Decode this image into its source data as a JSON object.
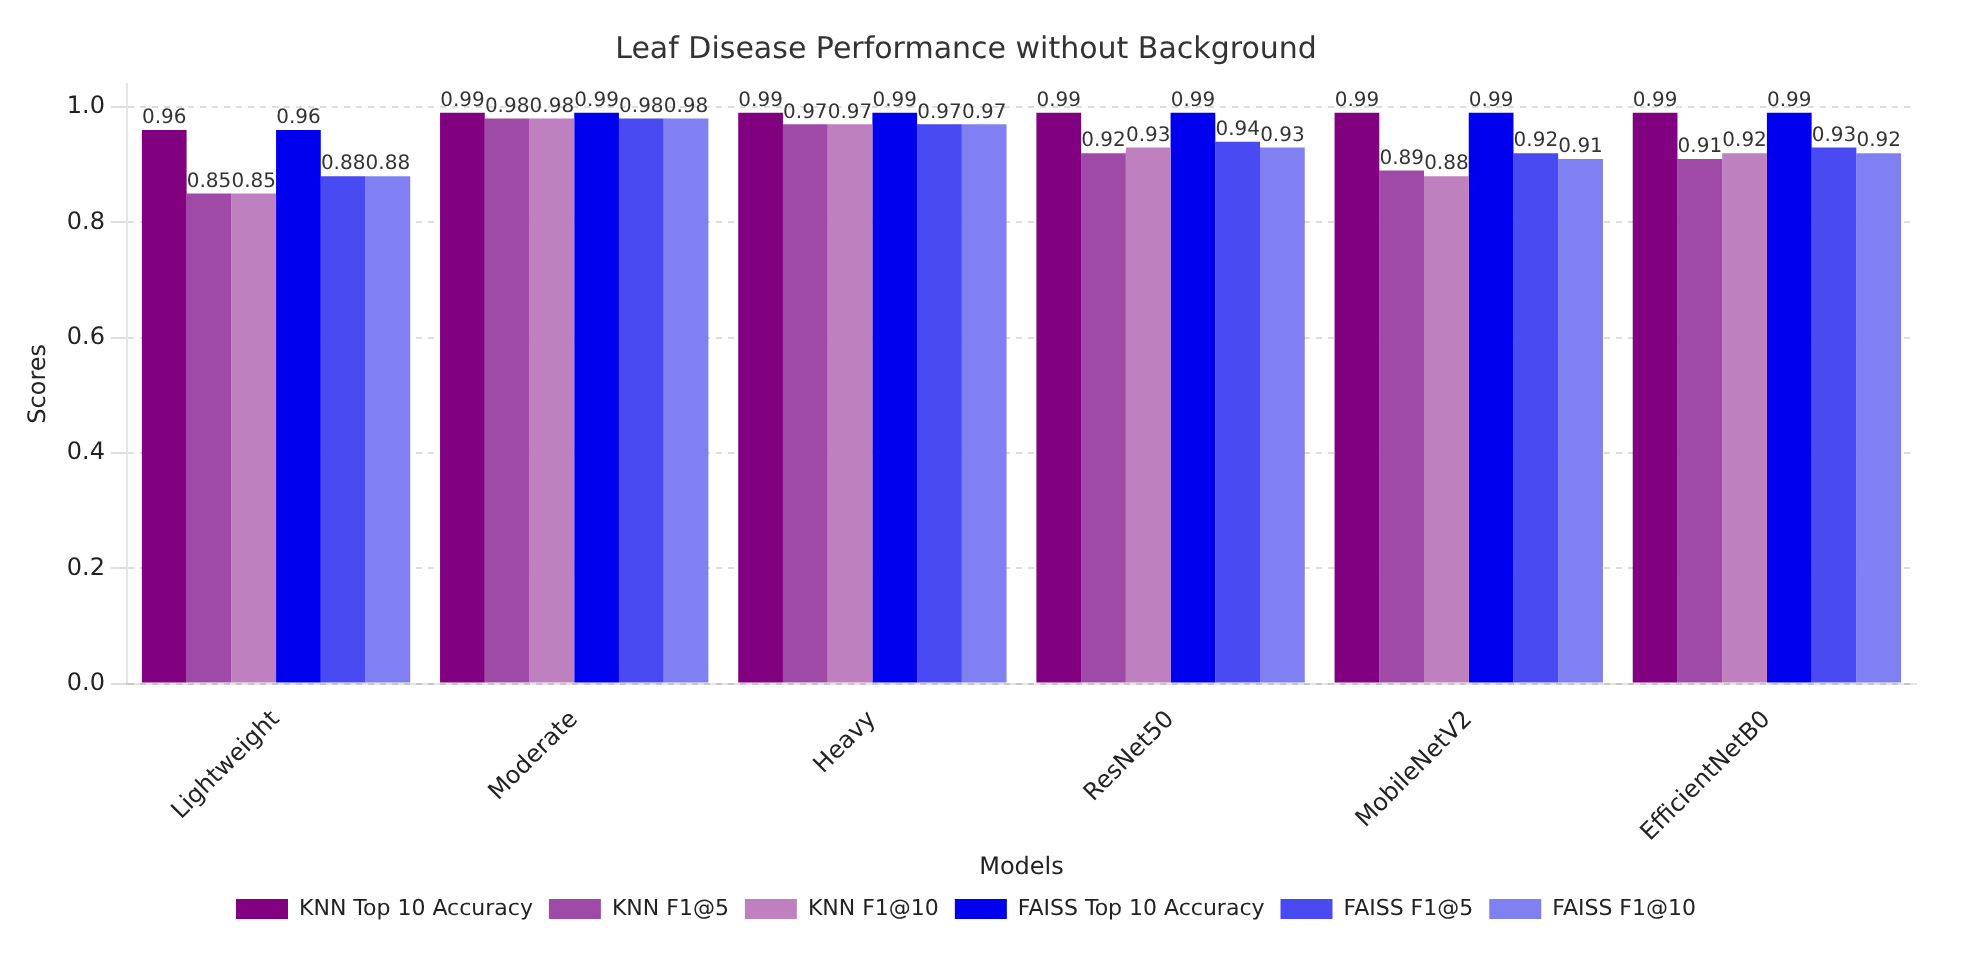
{
  "chart_data": {
    "type": "bar",
    "title": "Leaf Disease Performance without Background",
    "xlabel": "Models",
    "ylabel": "Scores",
    "categories": [
      "Lightweight",
      "Moderate",
      "Heavy",
      "ResNet50",
      "MobileNetV2",
      "EfficientNetB0"
    ],
    "series": [
      {
        "name": "KNN Top 10 Accuracy",
        "color": "#800080",
        "values": [
          0.96,
          0.99,
          0.99,
          0.99,
          0.99,
          0.99
        ]
      },
      {
        "name": "KNN F1@5",
        "color": "#a04aa8",
        "values": [
          0.85,
          0.98,
          0.97,
          0.92,
          0.89,
          0.91
        ]
      },
      {
        "name": "KNN F1@10",
        "color": "#bf80c0",
        "values": [
          0.85,
          0.98,
          0.97,
          0.93,
          0.88,
          0.92
        ]
      },
      {
        "name": "FAISS Top 10 Accuracy",
        "color": "#0000ee",
        "values": [
          0.96,
          0.99,
          0.99,
          0.99,
          0.99,
          0.99
        ]
      },
      {
        "name": "FAISS F1@5",
        "color": "#4a4af2",
        "values": [
          0.88,
          0.98,
          0.97,
          0.94,
          0.92,
          0.93
        ]
      },
      {
        "name": "FAISS F1@10",
        "color": "#8080f2",
        "values": [
          0.88,
          0.98,
          0.97,
          0.93,
          0.91,
          0.92
        ]
      }
    ],
    "ylim": [
      0,
      1.04
    ],
    "yticks": [
      {
        "value": 0,
        "label": "0.0"
      },
      0.2,
      0.4,
      0.6,
      0.8,
      {
        "value": 1,
        "label": "1.0"
      }
    ],
    "grid": "y",
    "legend": "bottom",
    "data_labels": true
  }
}
